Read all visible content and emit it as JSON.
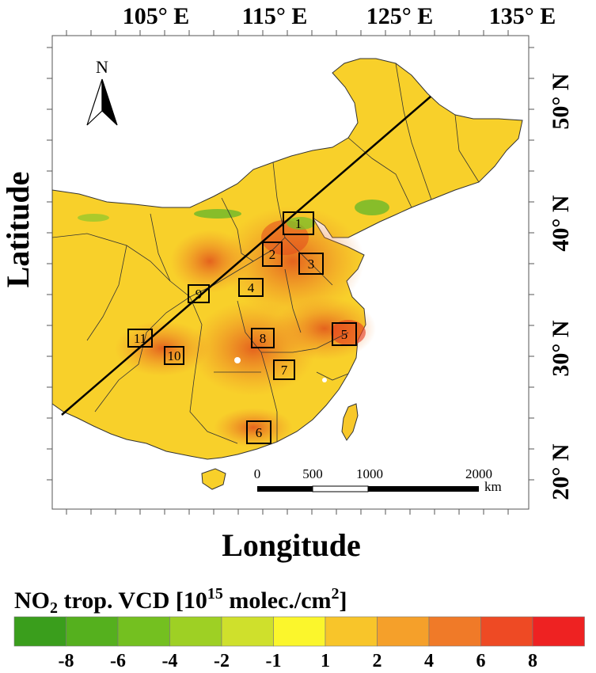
{
  "map": {
    "x_axis_label": "Longitude",
    "y_axis_label": "Latitude",
    "lon_ticks": [
      "105° E",
      "115° E",
      "125° E",
      "135° E"
    ],
    "lat_ticks": [
      "50° N",
      "40° N",
      "30° N",
      "20° N"
    ],
    "north_label": "N",
    "scale_bar": {
      "labels": [
        "0",
        "500",
        "1000",
        "2000"
      ],
      "unit": "km"
    },
    "region_boxes": [
      {
        "label": "1"
      },
      {
        "label": "2"
      },
      {
        "label": "3"
      },
      {
        "label": "4"
      },
      {
        "label": "5"
      },
      {
        "label": "6"
      },
      {
        "label": "7"
      },
      {
        "label": "8"
      },
      {
        "label": "9"
      },
      {
        "label": "10"
      },
      {
        "label": "11"
      }
    ]
  },
  "colorbar": {
    "title_prefix": "NO",
    "title_sub": "2",
    "title_mid": " trop. VCD  [10",
    "title_sup": "15",
    "title_unit": " molec./cm",
    "title_sup2": "2",
    "title_end": "]",
    "tick_labels": [
      "-8",
      "-6",
      "-4",
      "-2",
      "-1",
      "1",
      "2",
      "4",
      "6",
      "8"
    ],
    "colors": [
      "#3a9e1c",
      "#55b01e",
      "#74c020",
      "#9ed024",
      "#cfe02c",
      "#fbf62c",
      "#f8c52a",
      "#f5a02a",
      "#f07a28",
      "#ee4a24",
      "#ee2222"
    ]
  }
}
